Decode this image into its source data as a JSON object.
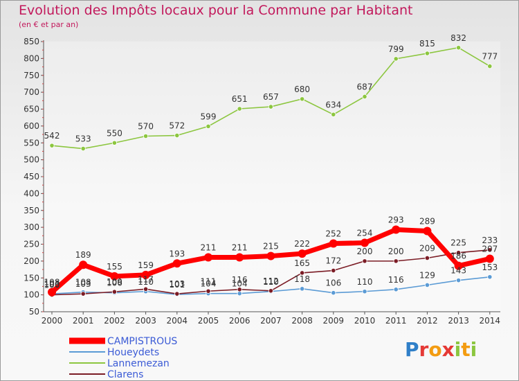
{
  "title": "Evolution des Impôts locaux pour la Commune par Habitant",
  "subtitle": "(en € et par an)",
  "logo_text": "Proxiti",
  "chart_data": {
    "type": "line",
    "x": [
      "2000",
      "2001",
      "2002",
      "2003",
      "2004",
      "2005",
      "2006",
      "2007",
      "2008",
      "2009",
      "2010",
      "2011",
      "2012",
      "2013",
      "2014"
    ],
    "ylim": [
      50,
      850
    ],
    "yticks": [
      50,
      100,
      150,
      200,
      250,
      300,
      350,
      400,
      450,
      500,
      550,
      600,
      650,
      700,
      750,
      800,
      850
    ],
    "grid": false,
    "legend_placement": "bottom-left",
    "series": [
      {
        "name": "CAMPISTROUS",
        "color": "#ff0000",
        "values": [
          108,
          189,
          155,
          159,
          193,
          211,
          211,
          215,
          222,
          252,
          254,
          293,
          289,
          186,
          207
        ],
        "labels": [
          "108",
          "189",
          "155",
          "159",
          "193",
          "211",
          "211",
          "215",
          "222",
          "252",
          "254",
          "293",
          "289",
          "186",
          "207"
        ]
      },
      {
        "name": "Houeydets",
        "color": "#5b9bd5",
        "values": [
          103,
          108,
          106,
          110,
          101,
          104,
          104,
          110,
          118,
          106,
          110,
          116,
          129,
          143,
          153
        ],
        "labels": [
          "103",
          "108",
          "106",
          "110",
          "101",
          "104",
          "104",
          "110",
          "118",
          "106",
          "110",
          "116",
          "129",
          "143",
          "153"
        ]
      },
      {
        "name": "Lannemezan",
        "color": "#8cc63f",
        "values": [
          542,
          533,
          550,
          570,
          572,
          599,
          651,
          657,
          680,
          634,
          687,
          799,
          815,
          832,
          777
        ],
        "labels": [
          "542",
          "533",
          "550",
          "570",
          "572",
          "599",
          "651",
          "657",
          "680",
          "634",
          "687",
          "799",
          "815",
          "832",
          "777"
        ]
      },
      {
        "name": "Clarens",
        "color": "#7b1c25",
        "values": [
          100,
          103,
          109,
          117,
          103,
          111,
          116,
          112,
          165,
          172,
          200,
          200,
          209,
          225,
          233
        ],
        "labels": [
          "100",
          "103",
          "109",
          "117",
          "103",
          "111",
          "116",
          "112",
          "165",
          "172",
          "200",
          "200",
          "209",
          "225",
          "233"
        ]
      }
    ]
  }
}
